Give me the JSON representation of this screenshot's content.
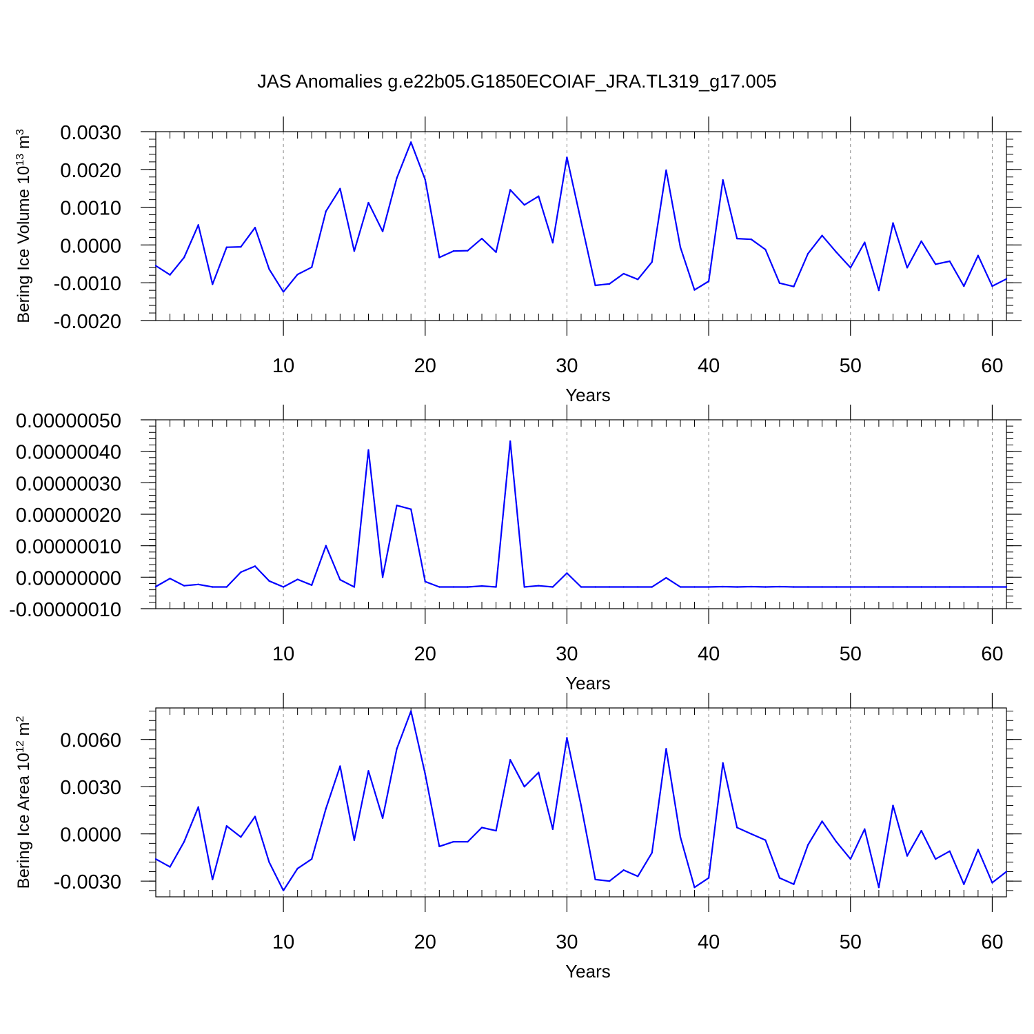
{
  "title": "JAS Anomalies g.e22b05.G1850ECOIAF_JRA.TL319_g17.005",
  "line_color": "#0000ff",
  "chart_data": [
    {
      "type": "line",
      "ylabel": "Bering Ice Volume 10",
      "ylabel_sup": "13",
      "ylabel_unit": " m",
      "ylabel_unit_sup": "3",
      "xlabel": "Years",
      "xlim": [
        1,
        61
      ],
      "ylim": [
        -0.002,
        0.003
      ],
      "yticks": [
        -0.002,
        -0.001,
        0.0,
        0.001,
        0.002,
        0.003
      ],
      "ytick_labels": [
        "-0.0020",
        "-0.0010",
        "0.0000",
        "0.0010",
        "0.0020",
        "0.0030"
      ],
      "xticks": [
        10,
        20,
        30,
        40,
        50,
        60
      ],
      "xtick_labels": [
        "10",
        "20",
        "30",
        "40",
        "50",
        "60"
      ],
      "grid": "vertical dashed",
      "x": [
        1,
        2,
        3,
        4,
        5,
        6,
        7,
        8,
        9,
        10,
        11,
        12,
        13,
        14,
        15,
        16,
        17,
        18,
        19,
        20,
        21,
        22,
        23,
        24,
        25,
        26,
        27,
        28,
        29,
        30,
        31,
        32,
        33,
        34,
        35,
        36,
        37,
        38,
        39,
        40,
        41,
        42,
        43,
        44,
        45,
        46,
        47,
        48,
        49,
        50,
        51,
        52,
        53,
        54,
        55,
        56,
        57,
        58,
        59,
        60,
        61
      ],
      "series": [
        {
          "values": [
            -0.00055,
            -0.00079,
            -0.00033,
            0.00053,
            -0.00104,
            -6e-05,
            -5e-05,
            0.00046,
            -0.00064,
            -0.00124,
            -0.00078,
            -0.00059,
            0.00089,
            0.00149,
            -0.00016,
            0.00112,
            0.00036,
            0.00177,
            0.00272,
            0.00173,
            -0.00033,
            -0.00016,
            -0.00015,
            0.00017,
            -0.00019,
            0.00146,
            0.00106,
            0.00129,
            6e-05,
            0.00232,
            0.00062,
            -0.00107,
            -0.00103,
            -0.00076,
            -0.00091,
            -0.00045,
            0.00198,
            -6e-05,
            -0.00119,
            -0.00096,
            0.00172,
            0.00017,
            0.00015,
            -0.00012,
            -0.00101,
            -0.0011,
            -0.00023,
            0.00025,
            -0.00019,
            -0.0006,
            7e-05,
            -0.0012,
            0.00058,
            -0.0006,
            0.0001,
            -0.00051,
            -0.00043,
            -0.00109,
            -0.00028,
            -0.00109,
            -0.0009
          ]
        }
      ]
    },
    {
      "type": "line",
      "ylabel": "",
      "xlabel": "Years",
      "xlim": [
        1,
        61
      ],
      "ylim": [
        -1e-07,
        5e-07
      ],
      "yticks": [
        -1e-07,
        0.0,
        1e-07,
        2e-07,
        3e-07,
        4e-07,
        5e-07
      ],
      "ytick_labels": [
        "-0.00000010",
        "0.00000000",
        "0.00000010",
        "0.00000020",
        "0.00000030",
        "0.00000040",
        "0.00000050"
      ],
      "xticks": [
        10,
        20,
        30,
        40,
        50,
        60
      ],
      "xtick_labels": [
        "10",
        "20",
        "30",
        "40",
        "50",
        "60"
      ],
      "grid": "vertical dashed",
      "x": [
        1,
        2,
        3,
        4,
        5,
        6,
        7,
        8,
        9,
        10,
        11,
        12,
        13,
        14,
        15,
        16,
        17,
        18,
        19,
        20,
        21,
        22,
        23,
        24,
        25,
        26,
        27,
        28,
        29,
        30,
        31,
        32,
        33,
        34,
        35,
        36,
        37,
        38,
        39,
        40,
        41,
        42,
        43,
        44,
        45,
        46,
        47,
        48,
        49,
        50,
        51,
        52,
        53,
        54,
        55,
        56,
        57,
        58,
        59,
        60,
        61
      ],
      "series": [
        {
          "values": [
            -3e-08,
            -4e-09,
            -2.7e-08,
            -2.3e-08,
            -3.1e-08,
            -3.1e-08,
            1.6e-08,
            3.5e-08,
            -1.2e-08,
            -3.1e-08,
            -7e-09,
            -2.5e-08,
            1e-07,
            -8e-09,
            -3.1e-08,
            4.04e-07,
            0.0,
            2.28e-07,
            2.16e-07,
            -1.4e-08,
            -3.1e-08,
            -3.1e-08,
            -3.1e-08,
            -2.8e-08,
            -3.1e-08,
            4.32e-07,
            -3.1e-08,
            -2.7e-08,
            -3.1e-08,
            1.3e-08,
            -3.1e-08,
            -3.1e-08,
            -3.1e-08,
            -3.1e-08,
            -3.1e-08,
            -3.1e-08,
            -2e-09,
            -3.1e-08,
            -3.1e-08,
            -3.1e-08,
            -3e-08,
            -3.1e-08,
            -3e-08,
            -3.1e-08,
            -3e-08,
            -3.1e-08,
            -3.1e-08,
            -3.1e-08,
            -3.1e-08,
            -3.1e-08,
            -3.1e-08,
            -3.1e-08,
            -3.1e-08,
            -3.1e-08,
            -3.1e-08,
            -3.1e-08,
            -3.1e-08,
            -3.1e-08,
            -3.1e-08,
            -3.1e-08,
            -3.1e-08
          ]
        }
      ]
    },
    {
      "type": "line",
      "ylabel": "Bering Ice Area 10",
      "ylabel_sup": "12",
      "ylabel_unit": " m",
      "ylabel_unit_sup": "2",
      "xlabel": "Years",
      "xlim": [
        1,
        61
      ],
      "ylim": [
        -0.004,
        0.008
      ],
      "yticks": [
        -0.003,
        0.0,
        0.003,
        0.006
      ],
      "ytick_labels": [
        "-0.0030",
        "0.0000",
        "0.0030",
        "0.0060"
      ],
      "xticks": [
        10,
        20,
        30,
        40,
        50,
        60
      ],
      "xtick_labels": [
        "10",
        "20",
        "30",
        "40",
        "50",
        "60"
      ],
      "grid": "vertical dashed",
      "x": [
        1,
        2,
        3,
        4,
        5,
        6,
        7,
        8,
        9,
        10,
        11,
        12,
        13,
        14,
        15,
        16,
        17,
        18,
        19,
        20,
        21,
        22,
        23,
        24,
        25,
        26,
        27,
        28,
        29,
        30,
        31,
        32,
        33,
        34,
        35,
        36,
        37,
        38,
        39,
        40,
        41,
        42,
        43,
        44,
        45,
        46,
        47,
        48,
        49,
        50,
        51,
        52,
        53,
        54,
        55,
        56,
        57,
        58,
        59,
        60,
        61
      ],
      "series": [
        {
          "values": [
            -0.0016,
            -0.0021,
            -0.0005,
            0.0017,
            -0.0029,
            0.0005,
            -0.0002,
            0.0011,
            -0.0018,
            -0.0036,
            -0.0022,
            -0.0016,
            0.0016,
            0.0043,
            -0.0004,
            0.004,
            0.001,
            0.0054,
            0.0078,
            0.0038,
            -0.0008,
            -0.0005,
            -0.0005,
            0.0004,
            0.0002,
            0.0047,
            0.003,
            0.0039,
            0.0003,
            0.0061,
            0.0018,
            -0.0029,
            -0.003,
            -0.0023,
            -0.0027,
            -0.0012,
            0.0054,
            -0.0002,
            -0.0034,
            -0.0028,
            0.0045,
            0.0004,
            0.0,
            -0.0004,
            -0.0028,
            -0.0032,
            -0.0007,
            0.0008,
            -0.0005,
            -0.0016,
            0.0003,
            -0.0034,
            0.0018,
            -0.0014,
            0.0002,
            -0.0016,
            -0.0011,
            -0.0032,
            -0.001,
            -0.0031,
            -0.0024
          ]
        }
      ]
    }
  ]
}
